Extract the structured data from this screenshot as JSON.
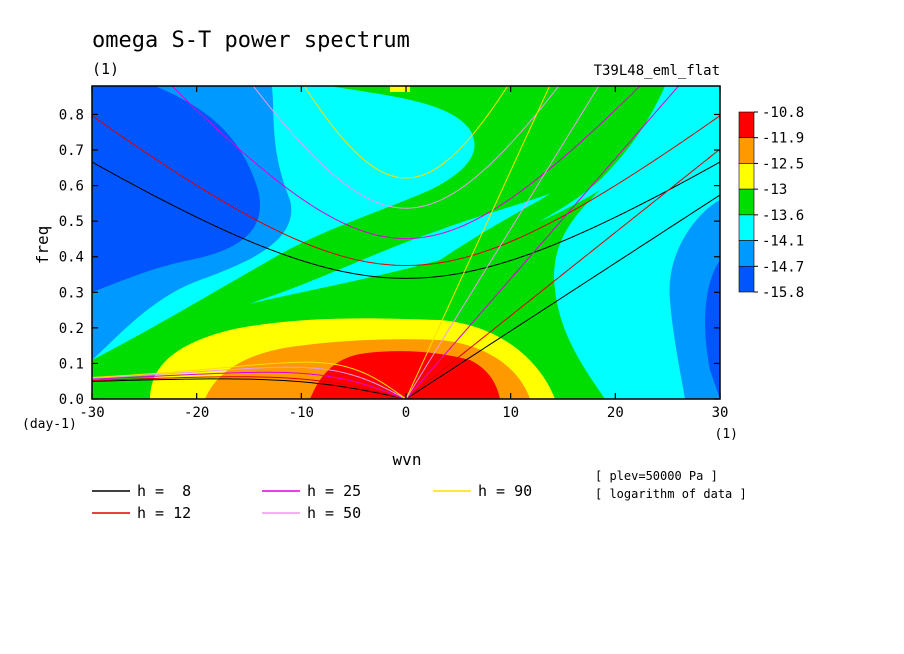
{
  "chart_data": {
    "type": "contour",
    "title": "omega S-T power spectrum",
    "subtitle_left": "(1)",
    "subtitle_right": "T39L48_eml_flat",
    "xlabel": "wvn",
    "ylabel": "freq",
    "x_unit": "(1)",
    "y_unit": "(day-1)",
    "xlim": [
      -30,
      30
    ],
    "ylim": [
      0,
      0.88
    ],
    "x_ticks": [
      -30,
      -20,
      -10,
      0,
      10,
      20,
      30
    ],
    "x_tick_labels": [
      "-30",
      "-20",
      "-10",
      "0",
      "10",
      "20",
      "30"
    ],
    "y_ticks": [
      0.0,
      0.1,
      0.2,
      0.3,
      0.4,
      0.5,
      0.6,
      0.7,
      0.8
    ],
    "y_tick_labels": [
      "0.0",
      "0.1",
      "0.2",
      "0.3",
      "0.4",
      "0.5",
      "0.6",
      "0.7",
      "0.8"
    ],
    "colorbar": {
      "levels": [
        "-10.8",
        "-11.9",
        "-12.5",
        "-13",
        "-13.6",
        "-14.1",
        "-14.7",
        "-15.8"
      ],
      "colors": [
        "#ff0000",
        "#ff9900",
        "#ffff00",
        "#00dd00",
        "#00ffff",
        "#0099ff",
        "#0055ff"
      ]
    },
    "contour_bands_description": "log power maximum near wvn 0-8, freq 0-0.13; decreasing outward; minima at wvn -30..-15 freq 0.4-0.85 and wvn 28-30 freq 0.1-0.35",
    "dispersion_curves": [
      {
        "name": "h =  8",
        "h": 8,
        "color": "#000000"
      },
      {
        "name": "h = 12",
        "h": 12,
        "color": "#dd0000"
      },
      {
        "name": "h = 25",
        "h": 25,
        "color": "#dd00dd"
      },
      {
        "name": "h = 50",
        "h": 50,
        "color": "#ee99ee"
      },
      {
        "name": "h = 90",
        "h": 90,
        "color": "#ffdd00"
      }
    ],
    "annotations": [
      "[ plev=50000 Pa ]",
      "[ logarithm of data ]"
    ]
  }
}
